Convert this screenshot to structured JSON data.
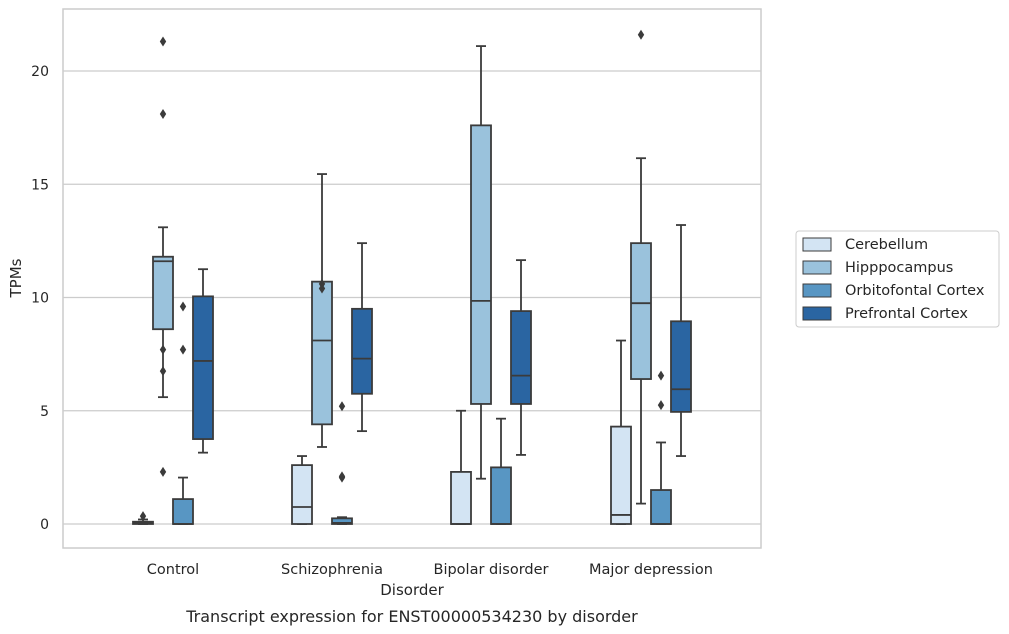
{
  "chart_data": {
    "type": "box",
    "caption": "Transcript expression for ENST00000534230 by disorder",
    "xlabel": "Disorder",
    "ylabel": "TPMs",
    "ylim": [
      -1,
      22.8
    ],
    "yticks": [
      0,
      5,
      10,
      15,
      20
    ],
    "grid": "horizontal",
    "legend_position": "right",
    "categories": [
      "Control",
      "Schizophrenia",
      "Bipolar disorder",
      "Major depression"
    ],
    "series": [
      {
        "name": "Cerebellum",
        "color": "#d3e4f3",
        "boxes": [
          {
            "whislo": 0.0,
            "q1": 0.0,
            "med": 0.05,
            "q3": 0.1,
            "whishi": 0.2,
            "fliers": [
              0.35
            ]
          },
          {
            "whislo": 0.0,
            "q1": 0.0,
            "med": 0.75,
            "q3": 2.6,
            "whishi": 3.0,
            "fliers": []
          },
          {
            "whislo": 0.0,
            "q1": 0.0,
            "med": 0.0,
            "q3": 2.3,
            "whishi": 5.0,
            "fliers": []
          },
          {
            "whislo": 0.0,
            "q1": 0.0,
            "med": 0.4,
            "q3": 4.3,
            "whishi": 8.1,
            "fliers": []
          }
        ]
      },
      {
        "name": "Hipppocampus",
        "color": "#9ac2dc",
        "boxes": [
          {
            "whislo": 5.6,
            "q1": 8.6,
            "med": 11.6,
            "q3": 11.8,
            "whishi": 13.1,
            "fliers": [
              2.3,
              6.75,
              7.7,
              18.1,
              21.3
            ]
          },
          {
            "whislo": 3.4,
            "q1": 4.4,
            "med": 8.1,
            "q3": 10.7,
            "whishi": 15.45,
            "fliers": [
              10.4,
              10.6
            ]
          },
          {
            "whislo": 2.0,
            "q1": 5.3,
            "med": 9.85,
            "q3": 17.6,
            "whishi": 21.1,
            "fliers": []
          },
          {
            "whislo": 0.9,
            "q1": 6.4,
            "med": 9.75,
            "q3": 12.4,
            "whishi": 16.15,
            "fliers": [
              21.6
            ]
          }
        ]
      },
      {
        "name": "Orbitofontal Cortex",
        "color": "#5896c3",
        "boxes": [
          {
            "whislo": 0.0,
            "q1": 0.0,
            "med": 0.0,
            "q3": 1.1,
            "whishi": 2.05,
            "fliers": [
              7.7,
              9.6
            ]
          },
          {
            "whislo": 0.0,
            "q1": 0.0,
            "med": 0.05,
            "q3": 0.25,
            "whishi": 0.3,
            "fliers": [
              2.05,
              2.1,
              5.2
            ]
          },
          {
            "whislo": 0.0,
            "q1": 0.0,
            "med": 0.0,
            "q3": 2.5,
            "whishi": 4.65,
            "fliers": []
          },
          {
            "whislo": 0.0,
            "q1": 0.0,
            "med": 0.0,
            "q3": 1.5,
            "whishi": 3.6,
            "fliers": [
              5.25,
              6.55
            ]
          }
        ]
      },
      {
        "name": "Prefrontal Cortex",
        "color": "#2a65a2",
        "boxes": [
          {
            "whislo": 3.15,
            "q1": 3.75,
            "med": 7.2,
            "q3": 10.05,
            "whishi": 11.25,
            "fliers": []
          },
          {
            "whislo": 4.1,
            "q1": 5.75,
            "med": 7.3,
            "q3": 9.5,
            "whishi": 12.4,
            "fliers": []
          },
          {
            "whislo": 3.05,
            "q1": 5.3,
            "med": 6.55,
            "q3": 9.4,
            "whishi": 11.65,
            "fliers": []
          },
          {
            "whislo": 3.0,
            "q1": 4.95,
            "med": 5.95,
            "q3": 8.95,
            "whishi": 13.2,
            "fliers": []
          }
        ]
      }
    ]
  }
}
